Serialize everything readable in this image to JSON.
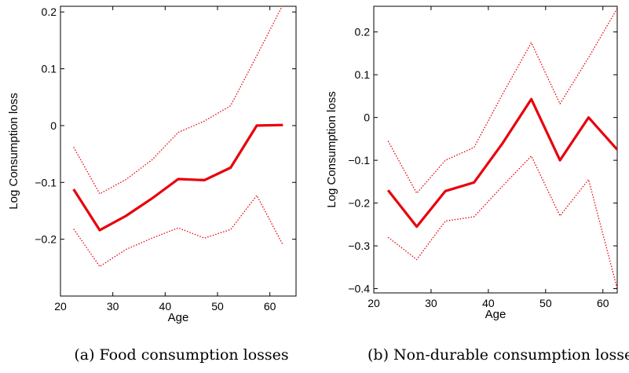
{
  "chart_data": [
    {
      "type": "line",
      "caption": "(a) Food consumption losses",
      "xlabel": "Age",
      "ylabel": "Log Consumption loss",
      "xlim": [
        20,
        65
      ],
      "ylim": [
        -0.3,
        0.21
      ],
      "xticks": [
        20,
        30,
        40,
        50,
        60
      ],
      "yticks": [
        -0.2,
        -0.1,
        0,
        0.1,
        0.2
      ],
      "ytick_labels": [
        "−0.2",
        "−0.1",
        "0",
        "0.1",
        "0.2"
      ],
      "xtick_labels": [
        "20",
        "30",
        "40",
        "50",
        "60"
      ],
      "x": [
        22.5,
        27.5,
        32.5,
        37.5,
        42.5,
        47.5,
        52.5,
        57.5,
        62.5
      ],
      "series": [
        {
          "role": "estimate",
          "values": [
            -0.112,
            -0.184,
            -0.159,
            -0.128,
            -0.094,
            -0.096,
            -0.074,
            0.0,
            0.001
          ],
          "color": "#e8000b"
        },
        {
          "role": "upper-band",
          "values": [
            -0.038,
            -0.12,
            -0.095,
            -0.06,
            -0.012,
            0.008,
            0.035,
            0.123,
            0.213
          ],
          "color": "#e8000b"
        },
        {
          "role": "lower-band",
          "values": [
            -0.182,
            -0.248,
            -0.218,
            -0.198,
            -0.18,
            -0.198,
            -0.183,
            -0.123,
            -0.21
          ],
          "color": "#e8000b"
        }
      ],
      "grid": false
    },
    {
      "type": "line",
      "caption": "(b) Non-durable consumption losses",
      "xlabel": "Age",
      "ylabel": "Log Consumption loss",
      "xlim": [
        20,
        62.5
      ],
      "ylim": [
        -0.41,
        0.26
      ],
      "xticks": [
        20,
        30,
        40,
        50,
        60
      ],
      "yticks": [
        -0.4,
        -0.3,
        -0.2,
        -0.1,
        0,
        0.1,
        0.2
      ],
      "ytick_labels": [
        "−0.4",
        "−0.3",
        "−0.2",
        "−0.1",
        "0",
        "0.1",
        "0.2"
      ],
      "xtick_labels": [
        "20",
        "30",
        "40",
        "50",
        "60"
      ],
      "x": [
        22.5,
        27.5,
        32.5,
        37.5,
        42.5,
        47.5,
        52.5,
        57.5,
        62.5
      ],
      "series": [
        {
          "role": "estimate",
          "values": [
            -0.17,
            -0.255,
            -0.172,
            -0.152,
            -0.06,
            0.043,
            -0.1,
            0.0,
            -0.075
          ],
          "color": "#e8000b"
        },
        {
          "role": "upper-band",
          "values": [
            -0.055,
            -0.177,
            -0.1,
            -0.07,
            0.055,
            0.175,
            0.032,
            0.14,
            0.255
          ],
          "color": "#e8000b"
        },
        {
          "role": "lower-band",
          "values": [
            -0.28,
            -0.332,
            -0.242,
            -0.232,
            -0.16,
            -0.09,
            -0.23,
            -0.145,
            -0.4
          ],
          "color": "#e8000b"
        }
      ],
      "grid": false
    }
  ]
}
